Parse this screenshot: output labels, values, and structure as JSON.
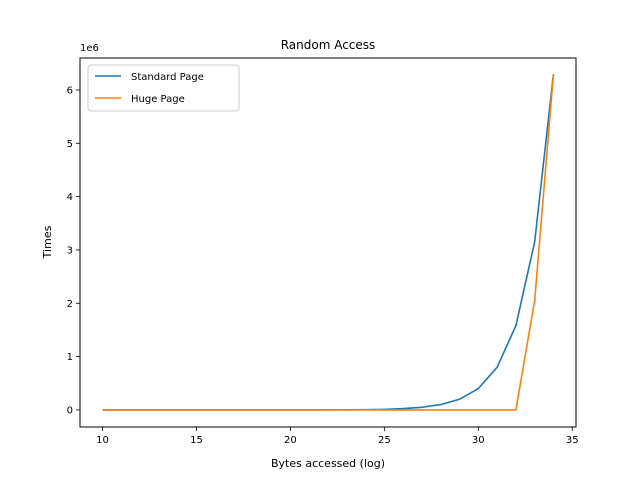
{
  "chart_data": {
    "type": "line",
    "title": "Random Access",
    "xlabel": "Bytes accessed (log)",
    "ylabel": "Times",
    "offset_text": "1e6",
    "xlim": [
      8.8,
      35.2
    ],
    "ylim": [
      -320000,
      6600000
    ],
    "xticks": [
      10,
      15,
      20,
      25,
      30,
      35
    ],
    "yticks": [
      0,
      1000000,
      2000000,
      3000000,
      4000000,
      5000000,
      6000000
    ],
    "ytick_labels": [
      "0",
      "1",
      "2",
      "3",
      "4",
      "5",
      "6"
    ],
    "grid": false,
    "legend_position": "upper-left",
    "x": [
      10,
      11,
      12,
      13,
      14,
      15,
      16,
      17,
      18,
      19,
      20,
      21,
      22,
      23,
      24,
      25,
      26,
      27,
      28,
      29,
      30,
      31,
      32,
      33,
      34
    ],
    "series": [
      {
        "name": "Standard Page",
        "color": "#1f77b4",
        "values": [
          0,
          0,
          0,
          0,
          0,
          0,
          0,
          0,
          0,
          0,
          0,
          0,
          1000,
          2000,
          5000,
          10000,
          25000,
          50000,
          100000,
          200000,
          400000,
          800000,
          1580000,
          3150000,
          6300000
        ]
      },
      {
        "name": "Huge Page",
        "color": "#ff7f0e",
        "values": [
          0,
          0,
          0,
          0,
          0,
          0,
          0,
          0,
          0,
          0,
          0,
          0,
          0,
          0,
          0,
          0,
          0,
          0,
          0,
          0,
          0,
          0,
          0,
          2050000,
          6300000
        ]
      }
    ]
  }
}
